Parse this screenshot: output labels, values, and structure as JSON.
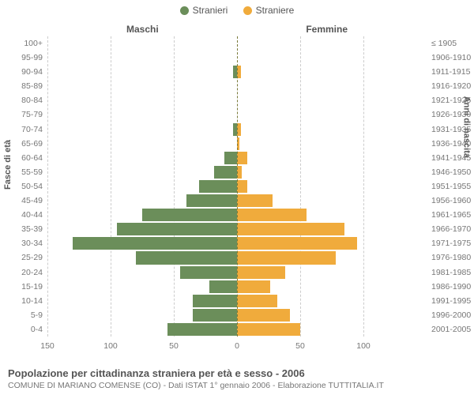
{
  "chart": {
    "type": "population-pyramid",
    "legend": {
      "male": {
        "label": "Stranieri",
        "color": "#6b8e5a"
      },
      "female": {
        "label": "Straniere",
        "color": "#f0ab3c"
      }
    },
    "side_titles": {
      "left": "Maschi",
      "right": "Femmine"
    },
    "y_axis": {
      "left_title": "Fasce di età",
      "right_title": "Anni di nascita"
    },
    "x_axis": {
      "max": 150,
      "ticks_left": [
        150,
        100,
        50,
        0
      ],
      "ticks_right": [
        0,
        50,
        100
      ]
    },
    "grid_color": "#cccccc",
    "center_color": "#7a7a3a",
    "background_color": "#ffffff",
    "rows": [
      {
        "age": "100+",
        "year": "≤ 1905",
        "m": 0,
        "f": 0
      },
      {
        "age": "95-99",
        "year": "1906-1910",
        "m": 0,
        "f": 0
      },
      {
        "age": "90-94",
        "year": "1911-1915",
        "m": 3,
        "f": 3
      },
      {
        "age": "85-89",
        "year": "1916-1920",
        "m": 0,
        "f": 0
      },
      {
        "age": "80-84",
        "year": "1921-1925",
        "m": 0,
        "f": 0
      },
      {
        "age": "75-79",
        "year": "1926-1930",
        "m": 0,
        "f": 0
      },
      {
        "age": "70-74",
        "year": "1931-1935",
        "m": 3,
        "f": 3
      },
      {
        "age": "65-69",
        "year": "1936-1940",
        "m": 0,
        "f": 2
      },
      {
        "age": "60-64",
        "year": "1941-1945",
        "m": 10,
        "f": 8
      },
      {
        "age": "55-59",
        "year": "1946-1950",
        "m": 18,
        "f": 4
      },
      {
        "age": "50-54",
        "year": "1951-1955",
        "m": 30,
        "f": 8
      },
      {
        "age": "45-49",
        "year": "1956-1960",
        "m": 40,
        "f": 28
      },
      {
        "age": "40-44",
        "year": "1961-1965",
        "m": 75,
        "f": 55
      },
      {
        "age": "35-39",
        "year": "1966-1970",
        "m": 95,
        "f": 85
      },
      {
        "age": "30-34",
        "year": "1971-1975",
        "m": 130,
        "f": 95
      },
      {
        "age": "25-29",
        "year": "1976-1980",
        "m": 80,
        "f": 78
      },
      {
        "age": "20-24",
        "year": "1981-1985",
        "m": 45,
        "f": 38
      },
      {
        "age": "15-19",
        "year": "1986-1990",
        "m": 22,
        "f": 26
      },
      {
        "age": "10-14",
        "year": "1991-1995",
        "m": 35,
        "f": 32
      },
      {
        "age": "5-9",
        "year": "1996-2000",
        "m": 35,
        "f": 42
      },
      {
        "age": "0-4",
        "year": "2001-2005",
        "m": 55,
        "f": 50
      }
    ],
    "footer": {
      "title": "Popolazione per cittadinanza straniera per età e sesso - 2006",
      "subtitle": "COMUNE DI MARIANO COMENSE (CO) - Dati ISTAT 1° gennaio 2006 - Elaborazione TUTTITALIA.IT"
    },
    "text_color_strong": "#555555",
    "text_color": "#777777",
    "label_fontsize": 10.5,
    "title_fontsize": 13
  }
}
